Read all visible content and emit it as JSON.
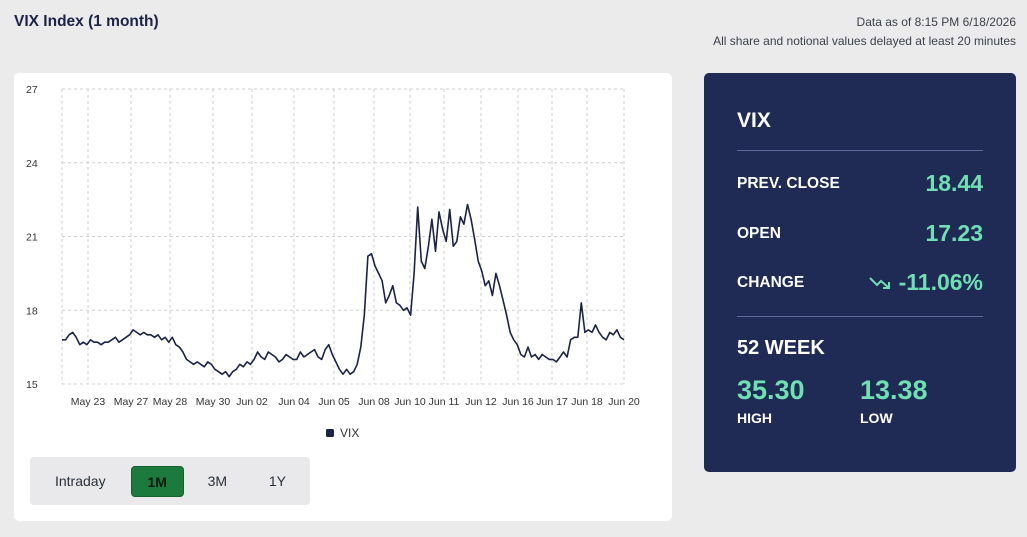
{
  "header": {
    "title": "VIX Index (1 month)",
    "data_as_of": "Data as of 8:15 PM 6/18/2026",
    "delay_note": "All share and notional values delayed at least 20 minutes"
  },
  "range_tabs": [
    {
      "label": "Intraday",
      "active": false
    },
    {
      "label": "1M",
      "active": true
    },
    {
      "label": "3M",
      "active": false
    },
    {
      "label": "1Y",
      "active": false
    }
  ],
  "panel": {
    "symbol": "VIX",
    "prev_close_label": "PREV. CLOSE",
    "prev_close": "18.44",
    "open_label": "OPEN",
    "open": "17.23",
    "change_label": "CHANGE",
    "change": "-11.06%",
    "change_icon": "trending-down-icon",
    "week52_label": "52 WEEK",
    "high": "35.30",
    "high_label": "HIGH",
    "low": "13.38",
    "low_label": "LOW",
    "accent_color": "#6fe0b1",
    "bg_color": "#1f2a55"
  },
  "chart_data": {
    "type": "line",
    "yticks": [
      15,
      18,
      21,
      24,
      27
    ],
    "ylim": [
      15,
      27
    ],
    "xticks": [
      "May 23",
      "May 27",
      "May 28",
      "May 30",
      "Jun 02",
      "Jun 04",
      "Jun 05",
      "Jun 08",
      "Jun 10",
      "Jun 11",
      "Jun 12",
      "Jun 16",
      "Jun 17",
      "Jun 18",
      "Jun 20"
    ],
    "grid": true,
    "legend": "bottom",
    "series": [
      {
        "name": "VIX",
        "color": "#1b2348",
        "values": [
          16.8,
          16.8,
          17.0,
          17.1,
          16.9,
          16.6,
          16.7,
          16.6,
          16.8,
          16.7,
          16.7,
          16.6,
          16.7,
          16.7,
          16.8,
          16.9,
          16.7,
          16.8,
          16.9,
          17.0,
          17.2,
          17.1,
          17.0,
          17.1,
          17.0,
          17.0,
          16.9,
          17.0,
          16.8,
          16.9,
          16.7,
          16.9,
          16.6,
          16.5,
          16.3,
          16.0,
          15.9,
          15.8,
          15.9,
          15.8,
          15.7,
          15.9,
          15.8,
          15.6,
          15.5,
          15.4,
          15.5,
          15.3,
          15.5,
          15.6,
          15.8,
          15.7,
          15.9,
          15.8,
          16.0,
          16.3,
          16.1,
          16.0,
          16.3,
          16.2,
          16.1,
          15.9,
          16.0,
          16.2,
          16.1,
          16.0,
          16.0,
          16.3,
          16.1,
          16.2,
          16.3,
          16.4,
          16.1,
          16.0,
          16.4,
          16.6,
          16.2,
          15.9,
          15.6,
          15.4,
          15.6,
          15.4,
          15.5,
          15.8,
          16.5,
          17.8,
          20.2,
          20.3,
          19.8,
          19.5,
          19.2,
          18.3,
          18.6,
          19.0,
          18.3,
          18.2,
          18.0,
          18.1,
          17.8,
          19.5,
          22.2,
          20.0,
          19.7,
          20.6,
          21.7,
          20.4,
          22.0,
          21.3,
          20.8,
          22.1,
          20.6,
          20.8,
          21.8,
          21.5,
          22.3,
          21.7,
          20.9,
          20.0,
          19.6,
          19.0,
          19.2,
          18.6,
          19.5,
          19.0,
          18.4,
          17.8,
          17.1,
          16.8,
          16.6,
          16.2,
          16.1,
          16.5,
          16.1,
          16.2,
          16.0,
          16.2,
          16.1,
          16.0,
          16.0,
          15.9,
          16.1,
          16.3,
          16.1,
          16.8,
          16.9,
          16.9,
          18.3,
          17.1,
          17.2,
          17.1,
          17.4,
          17.1,
          16.9,
          16.8,
          17.1,
          17.0,
          17.2,
          16.9,
          16.8
        ]
      }
    ]
  }
}
